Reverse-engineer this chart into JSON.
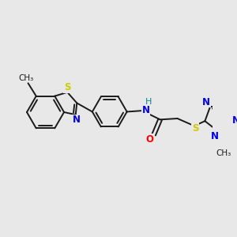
{
  "bg_color": "#e8e8e8",
  "bond_color": "#1a1a1a",
  "bond_width": 1.4,
  "atom_colors": {
    "S": "#cccc00",
    "N": "#0000ee",
    "O": "#ff0000",
    "H": "#008b8b"
  },
  "font_size_atom": 8.5,
  "font_size_small": 7.5,
  "title": ""
}
